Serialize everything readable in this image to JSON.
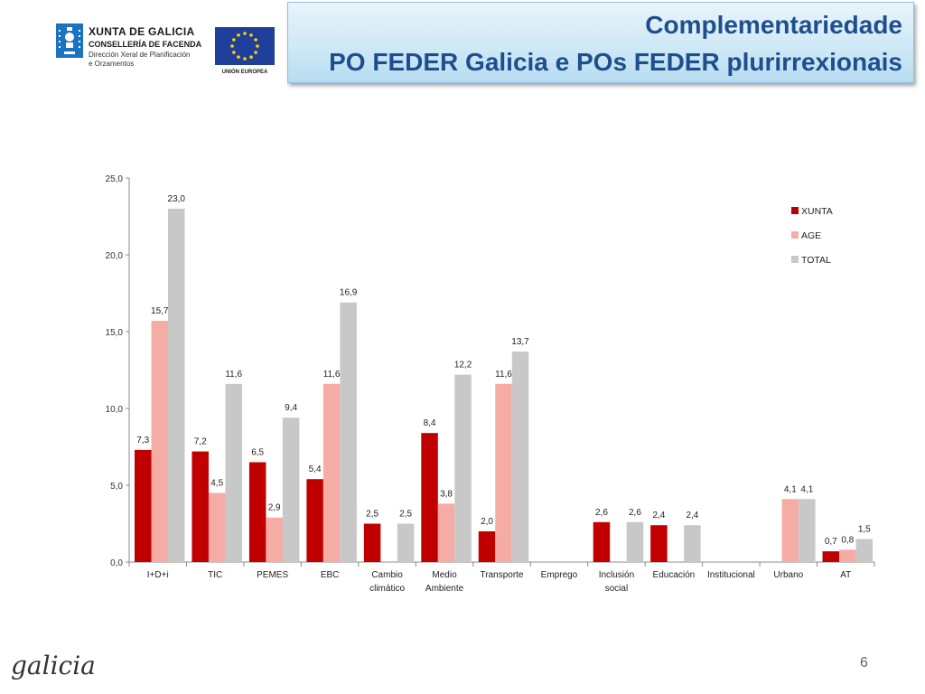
{
  "header": {
    "title_line1": "Complementariedade",
    "title_line2": "PO FEDER Galicia e POs FEDER plurirrexionais"
  },
  "logos": {
    "xunta": {
      "title": "XUNTA DE GALICIA",
      "department": "CONSELLERÍA DE FACENDA",
      "direction_line1": "Dirección Xeral de Planificación",
      "direction_line2": "e Orzamentos"
    },
    "eu": {
      "label": "UNIÓN EUROPEA"
    },
    "footer": "galicia"
  },
  "page_number": "6",
  "colors": {
    "xunta": "#c00000",
    "age": "#f4aca4",
    "total": "#c8c8c8",
    "title": "#1f4e8c"
  },
  "chart_data": {
    "type": "bar",
    "categories": [
      [
        "I+D+i"
      ],
      [
        "TIC"
      ],
      [
        "PEMES"
      ],
      [
        "EBC"
      ],
      [
        "Cambio",
        "climático"
      ],
      [
        "Medio",
        "Ambiente"
      ],
      [
        "Transporte"
      ],
      [
        "Emprego"
      ],
      [
        "Inclusión",
        "social"
      ],
      [
        "Educación"
      ],
      [
        "Institucional"
      ],
      [
        "Urbano"
      ],
      [
        "AT"
      ]
    ],
    "series": [
      {
        "name": "XUNTA",
        "color": "#c00000",
        "values": [
          7.3,
          7.2,
          6.5,
          5.4,
          2.5,
          8.4,
          2.0,
          null,
          2.6,
          2.4,
          null,
          null,
          0.7
        ]
      },
      {
        "name": "AGE",
        "color": "#f4aca4",
        "values": [
          15.7,
          4.5,
          2.9,
          11.6,
          null,
          3.8,
          11.6,
          null,
          null,
          null,
          null,
          4.1,
          0.8
        ]
      },
      {
        "name": "TOTAL",
        "color": "#c8c8c8",
        "values": [
          23.0,
          11.6,
          9.4,
          16.9,
          2.5,
          12.2,
          13.7,
          null,
          2.6,
          2.4,
          null,
          4.1,
          1.5
        ]
      }
    ],
    "yticks": [
      "0,0",
      "5,0",
      "10,0",
      "15,0",
      "20,0",
      "25,0"
    ],
    "ylim": [
      0,
      25
    ],
    "legend_position": "top-right",
    "grid": false
  }
}
